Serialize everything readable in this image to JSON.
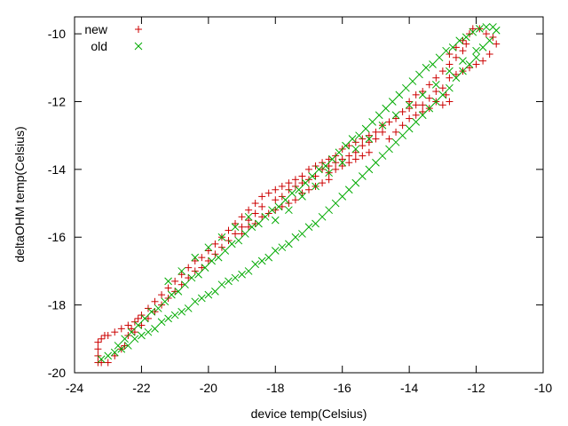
{
  "chart_data": {
    "type": "scatter",
    "title": "",
    "xlabel": "device temp(Celsius)",
    "ylabel": "deltaOHM temp(Celsius)",
    "xlim": [
      -24,
      -10
    ],
    "ylim": [
      -20,
      -9.5
    ],
    "xticks": [
      -24,
      -22,
      -20,
      -18,
      -16,
      -14,
      -12,
      -10
    ],
    "yticks": [
      -20,
      -18,
      -16,
      -14,
      -12,
      -10
    ],
    "grid": false,
    "legend_position": "top-left",
    "series": [
      {
        "name": "new",
        "marker": "plus",
        "color": "#cc0000",
        "points": [
          [
            -23.3,
            -19.7
          ],
          [
            -23.3,
            -19.5
          ],
          [
            -23.3,
            -19.3
          ],
          [
            -23.3,
            -19.1
          ],
          [
            -23.2,
            -19.0
          ],
          [
            -23.1,
            -18.9
          ],
          [
            -23.0,
            -18.9
          ],
          [
            -22.8,
            -18.8
          ],
          [
            -22.6,
            -18.7
          ],
          [
            -23.2,
            -19.7
          ],
          [
            -23.0,
            -19.7
          ],
          [
            -22.8,
            -19.5
          ],
          [
            -22.6,
            -19.3
          ],
          [
            -22.5,
            -19.2
          ],
          [
            -22.4,
            -18.9
          ],
          [
            -22.3,
            -18.7
          ],
          [
            -22.2,
            -18.5
          ],
          [
            -22.1,
            -18.4
          ],
          [
            -22.0,
            -18.3
          ],
          [
            -21.8,
            -18.1
          ],
          [
            -21.6,
            -17.9
          ],
          [
            -21.4,
            -17.7
          ],
          [
            -21.2,
            -17.5
          ],
          [
            -21.0,
            -17.3
          ],
          [
            -22.4,
            -18.6
          ],
          [
            -22.2,
            -18.8
          ],
          [
            -22.0,
            -18.6
          ],
          [
            -21.8,
            -18.4
          ],
          [
            -21.6,
            -18.2
          ],
          [
            -21.4,
            -18.0
          ],
          [
            -21.2,
            -17.8
          ],
          [
            -21.0,
            -17.6
          ],
          [
            -20.8,
            -17.4
          ],
          [
            -20.6,
            -17.2
          ],
          [
            -20.4,
            -17.0
          ],
          [
            -20.8,
            -17.1
          ],
          [
            -20.6,
            -16.9
          ],
          [
            -20.4,
            -16.7
          ],
          [
            -20.2,
            -16.6
          ],
          [
            -20.0,
            -16.4
          ],
          [
            -19.8,
            -16.2
          ],
          [
            -19.6,
            -16.0
          ],
          [
            -19.4,
            -15.8
          ],
          [
            -19.2,
            -15.6
          ],
          [
            -19.0,
            -15.4
          ],
          [
            -20.2,
            -16.9
          ],
          [
            -20.0,
            -16.7
          ],
          [
            -19.8,
            -16.5
          ],
          [
            -19.6,
            -16.3
          ],
          [
            -19.4,
            -16.1
          ],
          [
            -19.2,
            -15.9
          ],
          [
            -19.0,
            -15.7
          ],
          [
            -18.8,
            -15.5
          ],
          [
            -18.6,
            -15.3
          ],
          [
            -18.4,
            -15.1
          ],
          [
            -19.0,
            -15.9
          ],
          [
            -18.8,
            -15.7
          ],
          [
            -18.6,
            -15.6
          ],
          [
            -18.4,
            -15.4
          ],
          [
            -18.2,
            -15.3
          ],
          [
            -18.0,
            -15.2
          ],
          [
            -18.8,
            -15.2
          ],
          [
            -18.6,
            -15.0
          ],
          [
            -18.4,
            -14.8
          ],
          [
            -18.2,
            -14.7
          ],
          [
            -18.0,
            -14.6
          ],
          [
            -17.8,
            -14.5
          ],
          [
            -17.6,
            -14.4
          ],
          [
            -17.4,
            -14.3
          ],
          [
            -17.2,
            -14.2
          ],
          [
            -18.0,
            -14.9
          ],
          [
            -17.8,
            -14.8
          ],
          [
            -17.6,
            -14.6
          ],
          [
            -17.4,
            -14.5
          ],
          [
            -17.2,
            -14.4
          ],
          [
            -17.0,
            -14.3
          ],
          [
            -16.8,
            -14.2
          ],
          [
            -16.6,
            -14.0
          ],
          [
            -16.4,
            -13.9
          ],
          [
            -17.8,
            -15.1
          ],
          [
            -17.6,
            -15.0
          ],
          [
            -17.4,
            -14.9
          ],
          [
            -17.2,
            -14.7
          ],
          [
            -17.0,
            -14.6
          ],
          [
            -16.8,
            -14.5
          ],
          [
            -16.6,
            -14.4
          ],
          [
            -16.4,
            -14.3
          ],
          [
            -17.0,
            -14.0
          ],
          [
            -16.8,
            -13.9
          ],
          [
            -16.6,
            -13.8
          ],
          [
            -16.4,
            -13.7
          ],
          [
            -16.2,
            -13.6
          ],
          [
            -16.0,
            -13.4
          ],
          [
            -15.8,
            -13.3
          ],
          [
            -15.6,
            -13.2
          ],
          [
            -15.4,
            -13.1
          ],
          [
            -16.4,
            -14.1
          ],
          [
            -16.2,
            -14.0
          ],
          [
            -16.0,
            -13.9
          ],
          [
            -15.8,
            -13.8
          ],
          [
            -15.6,
            -13.7
          ],
          [
            -15.4,
            -13.6
          ],
          [
            -15.2,
            -13.5
          ],
          [
            -16.2,
            -13.8
          ],
          [
            -16.0,
            -13.7
          ],
          [
            -15.8,
            -13.6
          ],
          [
            -15.6,
            -13.5
          ],
          [
            -15.4,
            -13.3
          ],
          [
            -15.2,
            -13.2
          ],
          [
            -15.0,
            -13.1
          ],
          [
            -14.8,
            -12.9
          ],
          [
            -15.2,
            -13.0
          ],
          [
            -15.0,
            -12.9
          ],
          [
            -14.8,
            -12.7
          ],
          [
            -14.6,
            -12.6
          ],
          [
            -14.4,
            -12.5
          ],
          [
            -14.2,
            -12.3
          ],
          [
            -14.0,
            -12.2
          ],
          [
            -13.8,
            -12.1
          ],
          [
            -14.6,
            -13.1
          ],
          [
            -14.4,
            -12.9
          ],
          [
            -14.2,
            -12.7
          ],
          [
            -14.0,
            -12.5
          ],
          [
            -13.8,
            -12.4
          ],
          [
            -13.6,
            -12.3
          ],
          [
            -14.0,
            -12.0
          ],
          [
            -13.8,
            -11.8
          ],
          [
            -13.6,
            -11.7
          ],
          [
            -13.4,
            -11.5
          ],
          [
            -13.2,
            -11.3
          ],
          [
            -13.0,
            -11.1
          ],
          [
            -12.8,
            -10.9
          ],
          [
            -12.6,
            -10.7
          ],
          [
            -12.4,
            -10.5
          ],
          [
            -13.6,
            -12.1
          ],
          [
            -13.4,
            -11.9
          ],
          [
            -13.2,
            -11.7
          ],
          [
            -13.0,
            -11.6
          ],
          [
            -12.9,
            -11.8
          ],
          [
            -12.8,
            -12.0
          ],
          [
            -13.0,
            -12.1
          ],
          [
            -13.2,
            -12.0
          ],
          [
            -13.4,
            -12.2
          ],
          [
            -12.4,
            -10.2
          ],
          [
            -12.2,
            -10.0
          ],
          [
            -12.1,
            -9.85
          ],
          [
            -11.9,
            -9.85
          ],
          [
            -11.7,
            -10.0
          ],
          [
            -11.5,
            -10.1
          ],
          [
            -11.4,
            -10.3
          ],
          [
            -11.6,
            -10.6
          ],
          [
            -11.8,
            -10.8
          ],
          [
            -12.0,
            -10.9
          ],
          [
            -12.2,
            -11.0
          ],
          [
            -12.4,
            -11.1
          ],
          [
            -12.6,
            -11.2
          ],
          [
            -12.8,
            -11.3
          ],
          [
            -12.3,
            -10.3
          ],
          [
            -12.6,
            -10.4
          ],
          [
            -12.8,
            -10.6
          ]
        ]
      },
      {
        "name": "old",
        "marker": "cross",
        "color": "#00aa00",
        "points": [
          [
            -23.2,
            -19.6
          ],
          [
            -23.0,
            -19.5
          ],
          [
            -22.8,
            -19.4
          ],
          [
            -22.6,
            -19.3
          ],
          [
            -22.4,
            -19.2
          ],
          [
            -22.2,
            -19.0
          ],
          [
            -22.0,
            -18.9
          ],
          [
            -21.8,
            -18.8
          ],
          [
            -21.6,
            -18.7
          ],
          [
            -21.4,
            -18.5
          ],
          [
            -21.2,
            -18.4
          ],
          [
            -21.0,
            -18.3
          ],
          [
            -20.8,
            -18.2
          ],
          [
            -20.6,
            -18.1
          ],
          [
            -20.4,
            -17.9
          ],
          [
            -20.2,
            -17.8
          ],
          [
            -20.0,
            -17.7
          ],
          [
            -19.8,
            -17.6
          ],
          [
            -19.6,
            -17.4
          ],
          [
            -19.4,
            -17.3
          ],
          [
            -19.2,
            -17.2
          ],
          [
            -19.0,
            -17.1
          ],
          [
            -18.8,
            -17.0
          ],
          [
            -18.6,
            -16.8
          ],
          [
            -18.4,
            -16.7
          ],
          [
            -18.2,
            -16.6
          ],
          [
            -18.0,
            -16.4
          ],
          [
            -17.8,
            -16.3
          ],
          [
            -17.6,
            -16.2
          ],
          [
            -17.4,
            -16.0
          ],
          [
            -17.2,
            -15.9
          ],
          [
            -17.0,
            -15.7
          ],
          [
            -16.8,
            -15.6
          ],
          [
            -16.6,
            -15.4
          ],
          [
            -16.4,
            -15.2
          ],
          [
            -16.2,
            -15.0
          ],
          [
            -16.0,
            -14.8
          ],
          [
            -15.8,
            -14.6
          ],
          [
            -15.6,
            -14.4
          ],
          [
            -15.4,
            -14.2
          ],
          [
            -15.2,
            -14.0
          ],
          [
            -15.0,
            -13.8
          ],
          [
            -14.8,
            -13.6
          ],
          [
            -14.6,
            -13.4
          ],
          [
            -14.4,
            -13.2
          ],
          [
            -14.2,
            -13.0
          ],
          [
            -14.0,
            -12.8
          ],
          [
            -13.8,
            -12.6
          ],
          [
            -13.6,
            -12.4
          ],
          [
            -13.4,
            -12.2
          ],
          [
            -13.2,
            -12.0
          ],
          [
            -13.0,
            -11.8
          ],
          [
            -12.8,
            -11.6
          ],
          [
            -12.6,
            -11.3
          ],
          [
            -12.4,
            -11.1
          ],
          [
            -12.2,
            -10.9
          ],
          [
            -12.0,
            -10.7
          ],
          [
            -11.8,
            -10.4
          ],
          [
            -11.6,
            -10.2
          ],
          [
            -11.4,
            -9.9
          ],
          [
            -11.5,
            -9.8
          ],
          [
            -11.7,
            -9.8
          ],
          [
            -11.9,
            -9.85
          ],
          [
            -12.1,
            -9.95
          ],
          [
            -12.3,
            -10.1
          ],
          [
            -12.5,
            -10.2
          ],
          [
            -12.7,
            -10.4
          ],
          [
            -12.9,
            -10.5
          ],
          [
            -13.1,
            -10.7
          ],
          [
            -13.3,
            -10.9
          ],
          [
            -13.5,
            -11.0
          ],
          [
            -13.7,
            -11.2
          ],
          [
            -13.9,
            -11.4
          ],
          [
            -14.1,
            -11.6
          ],
          [
            -14.3,
            -11.8
          ],
          [
            -14.5,
            -12.0
          ],
          [
            -14.7,
            -12.2
          ],
          [
            -14.9,
            -12.4
          ],
          [
            -15.1,
            -12.6
          ],
          [
            -15.3,
            -12.8
          ],
          [
            -15.5,
            -13.0
          ],
          [
            -15.7,
            -13.1
          ],
          [
            -15.9,
            -13.3
          ],
          [
            -16.1,
            -13.5
          ],
          [
            -16.3,
            -13.7
          ],
          [
            -16.5,
            -13.9
          ],
          [
            -16.7,
            -14.0
          ],
          [
            -16.9,
            -14.2
          ],
          [
            -17.1,
            -14.4
          ],
          [
            -17.3,
            -14.6
          ],
          [
            -17.5,
            -14.7
          ],
          [
            -17.7,
            -14.9
          ],
          [
            -17.9,
            -15.1
          ],
          [
            -18.1,
            -15.2
          ],
          [
            -18.3,
            -15.4
          ],
          [
            -18.5,
            -15.6
          ],
          [
            -18.7,
            -15.7
          ],
          [
            -18.9,
            -15.9
          ],
          [
            -19.1,
            -16.1
          ],
          [
            -19.3,
            -16.2
          ],
          [
            -19.5,
            -16.4
          ],
          [
            -19.7,
            -16.6
          ],
          [
            -19.9,
            -16.7
          ],
          [
            -20.1,
            -16.9
          ],
          [
            -20.3,
            -17.1
          ],
          [
            -20.5,
            -17.2
          ],
          [
            -20.7,
            -17.4
          ],
          [
            -20.9,
            -17.6
          ],
          [
            -21.1,
            -17.7
          ],
          [
            -21.3,
            -17.9
          ],
          [
            -21.5,
            -18.1
          ],
          [
            -21.7,
            -18.2
          ],
          [
            -21.9,
            -18.4
          ],
          [
            -22.1,
            -18.6
          ],
          [
            -22.3,
            -18.8
          ],
          [
            -22.5,
            -19.0
          ],
          [
            -22.7,
            -19.2
          ],
          [
            -18.0,
            -15.5
          ],
          [
            -17.6,
            -15.2
          ],
          [
            -17.2,
            -14.8
          ],
          [
            -16.8,
            -14.5
          ],
          [
            -16.4,
            -14.1
          ],
          [
            -16.0,
            -13.8
          ],
          [
            -15.6,
            -13.4
          ],
          [
            -15.2,
            -13.1
          ],
          [
            -14.8,
            -12.7
          ],
          [
            -14.4,
            -12.4
          ],
          [
            -14.0,
            -12.1
          ],
          [
            -13.6,
            -11.8
          ],
          [
            -13.2,
            -11.5
          ],
          [
            -12.8,
            -11.1
          ],
          [
            -12.4,
            -10.8
          ],
          [
            -12.0,
            -10.5
          ],
          [
            -21.2,
            -17.3
          ],
          [
            -20.8,
            -17.0
          ],
          [
            -20.4,
            -16.6
          ],
          [
            -20.0,
            -16.3
          ],
          [
            -19.6,
            -16.0
          ],
          [
            -19.2,
            -15.7
          ],
          [
            -18.8,
            -15.4
          ]
        ]
      }
    ]
  }
}
